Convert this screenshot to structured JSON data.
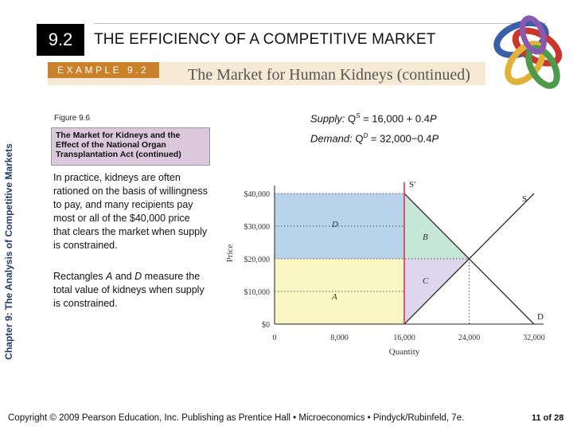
{
  "header": {
    "section_number": "9.2",
    "title": "THE EFFICIENCY OF A COMPETITIVE MARKET"
  },
  "example": {
    "tag": "EXAMPLE 9.2",
    "title": "The Market for Human Kidneys (continued)"
  },
  "side_label": "Chapter 9: The Analysis of Competitive Markets",
  "figure": {
    "label": "Figure 9.6",
    "caption": "The Market for Kidneys and the Effect of the National Organ Transplantation Act (continued)"
  },
  "equations": {
    "supply_label": "Supply:",
    "supply_prefix": "Q",
    "supply_sup": "S",
    "supply_rest": " = 16,000 + 0.4",
    "supply_var": "P",
    "demand_label": "Demand:",
    "demand_prefix": "Q",
    "demand_sup": "D",
    "demand_rest": " = 32,000−0.4",
    "demand_var": "P"
  },
  "text": {
    "paragraph1": "In practice, kidneys are often rationed on the basis of willingness to pay, and many recipients pay most or all of the $40,000 price that clears the market when supply is constrained.",
    "paragraph2_prefix": "Rectangles ",
    "paragraph2_a": "A",
    "paragraph2_mid": " and ",
    "paragraph2_d": "D",
    "paragraph2_suffix": " measure the total value of kidneys when supply is constrained."
  },
  "footer": {
    "copyright": "Copyright © 2009 Pearson Education, Inc. Publishing as Prentice Hall • Microeconomics • Pindyck/Rubinfeld, 7e.",
    "page": "11 of 28"
  },
  "colors": {
    "rect_d": "#b9d3ea",
    "rect_a": "#fbf7c5",
    "tri_b": "#c6e6d8",
    "tri_c": "#ddd6ec",
    "supply_fixed": "#e0334f",
    "curves": "#2a2a2a",
    "badge": "#000000",
    "banner": "#f6ead5",
    "tag": "#c9812a",
    "figure_box": "#dcc8dc",
    "side_label": "#1f3b6e"
  },
  "chart_data": {
    "type": "line",
    "xlabel": "Quantity",
    "ylabel": "Price",
    "xlim": [
      0,
      32000
    ],
    "ylim": [
      0,
      45000
    ],
    "x_ticks": [
      0,
      8000,
      16000,
      24000,
      32000
    ],
    "x_tick_labels": [
      "0",
      "8,000",
      "16,000",
      "24,000",
      "32,000"
    ],
    "y_ticks": [
      0,
      10000,
      20000,
      30000,
      40000
    ],
    "y_tick_labels": [
      "$0",
      "$10,000",
      "$20,000",
      "$30,000",
      "$40,000"
    ],
    "series": [
      {
        "name": "S",
        "x": [
          16000,
          32000
        ],
        "y": [
          0,
          40000
        ]
      },
      {
        "name": "D",
        "x": [
          16000,
          32000
        ],
        "y": [
          40000,
          0
        ]
      },
      {
        "name": "S′",
        "x": [
          16000,
          16000
        ],
        "y": [
          0,
          45000
        ]
      }
    ],
    "areas": [
      {
        "name": "D",
        "x0": 0,
        "x1": 16000,
        "y0": 20000,
        "y1": 40000
      },
      {
        "name": "A",
        "x0": 0,
        "x1": 16000,
        "y0": 0,
        "y1": 20000
      },
      {
        "name": "B",
        "points": [
          [
            16000,
            40000
          ],
          [
            16000,
            20000
          ],
          [
            24000,
            20000
          ]
        ]
      },
      {
        "name": "C",
        "points": [
          [
            16000,
            20000
          ],
          [
            24000,
            20000
          ],
          [
            16000,
            0
          ]
        ]
      }
    ],
    "grid": false
  }
}
